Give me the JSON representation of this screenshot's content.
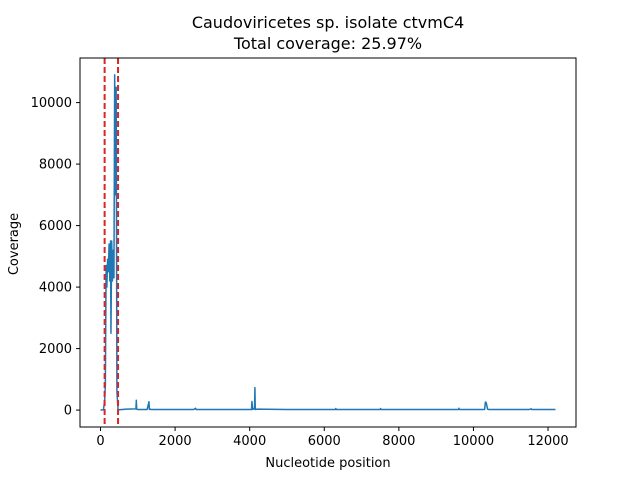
{
  "chart_data": {
    "type": "line",
    "title": "Caudoviricetes sp. isolate ctvmC4",
    "subtitle": "Total coverage: 25.97%",
    "xlabel": "Nucleotide position",
    "ylabel": "Coverage",
    "xlim": [
      -550,
      12750
    ],
    "ylim": [
      -550,
      11450
    ],
    "xticks": [
      0,
      2000,
      4000,
      6000,
      8000,
      10000,
      12000
    ],
    "yticks": [
      0,
      2000,
      4000,
      6000,
      8000,
      10000
    ],
    "grid": false,
    "series": [
      {
        "color": "#1f77b4",
        "x": [
          0,
          80,
          110,
          130,
          150,
          170,
          190,
          210,
          230,
          250,
          270,
          280,
          300,
          320,
          340,
          360,
          380,
          400,
          420,
          440,
          470,
          500,
          700,
          950,
          960,
          970,
          1000,
          1250,
          1300,
          1310,
          1320,
          1350,
          2000,
          2500,
          2550,
          2560,
          2600,
          3000,
          4000,
          4050,
          4060,
          4080,
          4100,
          4130,
          4140,
          4150,
          4200,
          5000,
          6000,
          6300,
          6310,
          6320,
          7000,
          7500,
          7510,
          7520,
          8000,
          9000,
          9500,
          9600,
          9610,
          9620,
          10000,
          10300,
          10320,
          10340,
          10380,
          10400,
          11000,
          11500,
          11550,
          11560,
          11600,
          12000,
          12200
        ],
        "y": [
          0,
          10,
          300,
          800,
          4700,
          4000,
          4900,
          4500,
          5400,
          4200,
          5500,
          2500,
          5500,
          4200,
          5200,
          4300,
          10900,
          7000,
          10500,
          600,
          20,
          10,
          30,
          40,
          320,
          30,
          20,
          20,
          270,
          20,
          40,
          20,
          20,
          20,
          60,
          20,
          20,
          20,
          20,
          20,
          280,
          20,
          40,
          30,
          730,
          20,
          30,
          20,
          20,
          20,
          50,
          20,
          20,
          20,
          50,
          20,
          20,
          20,
          20,
          20,
          60,
          20,
          20,
          20,
          260,
          250,
          30,
          20,
          20,
          20,
          40,
          20,
          20,
          20,
          20
        ]
      }
    ],
    "vlines": [
      {
        "x": 110,
        "color": "#d62728"
      },
      {
        "x": 470,
        "color": "#d62728"
      }
    ]
  }
}
